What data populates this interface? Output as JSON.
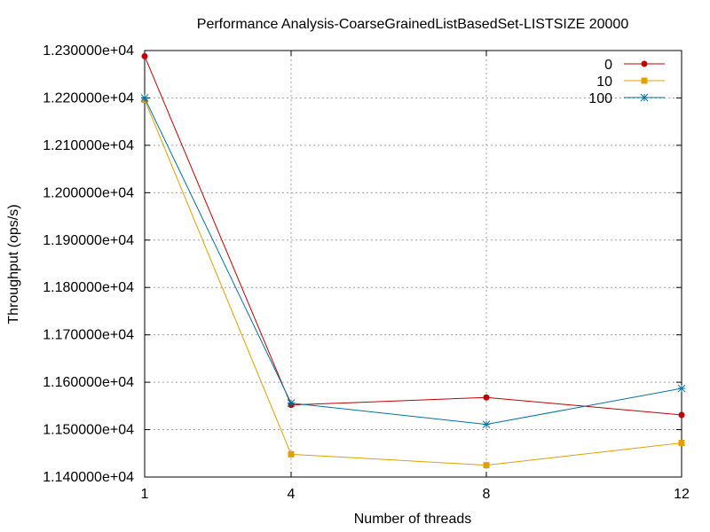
{
  "chart_data": {
    "type": "line",
    "title": "Performance Analysis-CoarseGrainedListBasedSet-LISTSIZE 20000",
    "xlabel": "Number of threads",
    "ylabel": "Throughput (ops/s)",
    "x": [
      1,
      4,
      8,
      12
    ],
    "x_ticks": [
      "1",
      "4",
      "8",
      "12"
    ],
    "xlim": [
      1,
      12
    ],
    "ylim": [
      11400,
      12300
    ],
    "y_ticks": [
      11400,
      11500,
      11600,
      11700,
      11800,
      11900,
      12000,
      12100,
      12200,
      12300
    ],
    "y_tick_labels": [
      "1.140000e+04",
      "1.150000e+04",
      "1.160000e+04",
      "1.170000e+04",
      "1.180000e+04",
      "1.190000e+04",
      "1.200000e+04",
      "1.210000e+04",
      "1.220000e+04",
      "1.230000e+04"
    ],
    "grid": true,
    "legend_position": "top-right",
    "series": [
      {
        "name": "0",
        "color": "#c00000",
        "marker": "filled-circle",
        "values": [
          12288,
          11552,
          11568,
          11531
        ]
      },
      {
        "name": "10",
        "color": "#e0a000",
        "marker": "filled-square",
        "values": [
          12196,
          11448,
          11425,
          11472
        ]
      },
      {
        "name": "100",
        "color": "#0070a0",
        "marker": "asterisk",
        "values": [
          12200,
          11556,
          11511,
          11587
        ]
      }
    ]
  }
}
